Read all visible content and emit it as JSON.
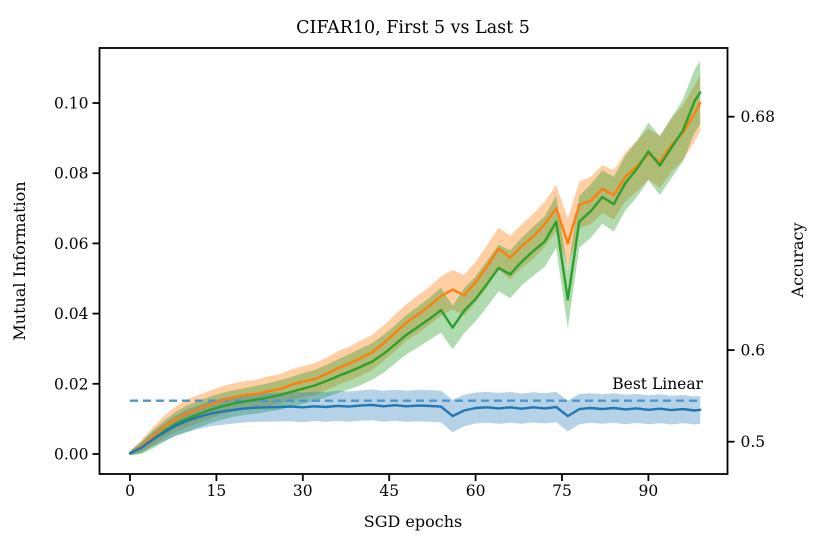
{
  "figure": {
    "background": "#ffffff",
    "text_color": "#000000"
  },
  "chart_data": {
    "type": "line",
    "title": "CIFAR10, First 5 vs Last 5",
    "xlabel": "SGD epochs",
    "ylabel_left": "Mutual Information",
    "ylabel_right": "Accuracy",
    "grid": false,
    "legend": "none",
    "x_axis": {
      "tick_values": [
        0,
        15,
        30,
        45,
        60,
        75,
        90
      ],
      "tick_labels": [
        "0",
        "15",
        "30",
        "45",
        "60",
        "75",
        "90"
      ],
      "range": [
        -5.3,
        103.7
      ]
    },
    "y_axis_left": {
      "tick_values": [
        0.0,
        0.02,
        0.04,
        0.06,
        0.08,
        0.1
      ],
      "tick_labels": [
        "0.00",
        "0.02",
        "0.04",
        "0.06",
        "0.08",
        "0.10"
      ],
      "range": [
        -0.0057,
        0.1157
      ]
    },
    "y_axis_right": {
      "note": "nonlinear accuracy axis; ticks located at equivalent Mutual Information values",
      "ticks": [
        {
          "label": "0.68",
          "mi": 0.0961
        },
        {
          "label": "0.6",
          "mi": 0.0296
        },
        {
          "label": "0.5",
          "mi": 0.0035
        }
      ]
    },
    "baseline": {
      "label": "Best Linear",
      "value": 0.0152,
      "x_start": 0,
      "x_end": 98.5,
      "color": "#4f94cc",
      "style": "dashed"
    },
    "x": [
      0,
      2,
      4,
      6,
      8,
      10,
      12,
      14,
      16,
      18,
      20,
      22,
      24,
      26,
      28,
      30,
      32,
      34,
      36,
      38,
      40,
      42,
      44,
      46,
      48,
      50,
      52,
      54,
      56,
      58,
      60,
      62,
      64,
      66,
      68,
      70,
      72,
      74,
      76,
      78,
      80,
      82,
      84,
      86,
      88,
      90,
      92,
      94,
      96,
      98,
      99
    ],
    "series": [
      {
        "name": "orange",
        "color": "#ff7f0e",
        "band_alpha": 0.38,
        "values": [
          0.0002,
          0.0022,
          0.005,
          0.0078,
          0.01,
          0.0116,
          0.0129,
          0.0141,
          0.0153,
          0.0161,
          0.0168,
          0.0171,
          0.0179,
          0.0185,
          0.0197,
          0.0206,
          0.0213,
          0.0227,
          0.0244,
          0.0257,
          0.0273,
          0.0289,
          0.0315,
          0.0345,
          0.0375,
          0.0398,
          0.0422,
          0.045,
          0.0468,
          0.0452,
          0.049,
          0.0535,
          0.0585,
          0.056,
          0.0592,
          0.062,
          0.0655,
          0.07,
          0.06,
          0.071,
          0.0722,
          0.0755,
          0.0738,
          0.079,
          0.082,
          0.0855,
          0.0832,
          0.088,
          0.0915,
          0.097,
          0.1
        ],
        "band_halfwidth": [
          0.0006,
          0.0018,
          0.0026,
          0.0032,
          0.0036,
          0.004,
          0.004,
          0.004,
          0.004,
          0.004,
          0.004,
          0.004,
          0.0042,
          0.0042,
          0.0044,
          0.0044,
          0.0046,
          0.0046,
          0.0048,
          0.0048,
          0.005,
          0.005,
          0.005,
          0.0052,
          0.0052,
          0.0054,
          0.0054,
          0.0056,
          0.0056,
          0.0058,
          0.0058,
          0.006,
          0.006,
          0.0062,
          0.0062,
          0.0064,
          0.0064,
          0.0066,
          0.007,
          0.0066,
          0.0068,
          0.0068,
          0.007,
          0.007,
          0.0072,
          0.0072,
          0.0074,
          0.0076,
          0.0078,
          0.008,
          0.008
        ]
      },
      {
        "name": "green",
        "color": "#2ca02c",
        "band_alpha": 0.38,
        "values": [
          0.0002,
          0.0018,
          0.0042,
          0.0066,
          0.0087,
          0.0101,
          0.0114,
          0.0126,
          0.0136,
          0.0144,
          0.015,
          0.0155,
          0.0161,
          0.0168,
          0.0177,
          0.0186,
          0.0195,
          0.0207,
          0.0221,
          0.0234,
          0.0248,
          0.0263,
          0.0285,
          0.0312,
          0.034,
          0.0362,
          0.0385,
          0.041,
          0.036,
          0.0408,
          0.0442,
          0.0485,
          0.053,
          0.0512,
          0.0548,
          0.0578,
          0.0605,
          0.0662,
          0.044,
          0.0662,
          0.0692,
          0.0732,
          0.0712,
          0.0772,
          0.0812,
          0.0862,
          0.0822,
          0.0872,
          0.0922,
          0.1005,
          0.103
        ],
        "band_halfwidth": [
          0.0006,
          0.0018,
          0.0026,
          0.003,
          0.0034,
          0.0038,
          0.0038,
          0.0038,
          0.0038,
          0.0038,
          0.0038,
          0.004,
          0.004,
          0.0042,
          0.0042,
          0.0044,
          0.0044,
          0.0046,
          0.0048,
          0.005,
          0.0052,
          0.0052,
          0.0054,
          0.0054,
          0.0056,
          0.0058,
          0.006,
          0.0064,
          0.0062,
          0.0064,
          0.0064,
          0.0066,
          0.0066,
          0.0068,
          0.0068,
          0.007,
          0.0072,
          0.0074,
          0.0082,
          0.0074,
          0.0076,
          0.0076,
          0.0078,
          0.0078,
          0.008,
          0.0082,
          0.0084,
          0.0086,
          0.0088,
          0.009,
          0.009
        ]
      },
      {
        "name": "blue",
        "color": "#1f77b4",
        "band_alpha": 0.33,
        "values": [
          0.0002,
          0.0018,
          0.0042,
          0.0062,
          0.0081,
          0.0095,
          0.0106,
          0.0115,
          0.0121,
          0.0126,
          0.013,
          0.0132,
          0.0133,
          0.0134,
          0.0135,
          0.0133,
          0.0136,
          0.0134,
          0.0137,
          0.0135,
          0.0138,
          0.014,
          0.0136,
          0.0139,
          0.0136,
          0.0138,
          0.0137,
          0.0135,
          0.0108,
          0.0124,
          0.0131,
          0.0133,
          0.013,
          0.0133,
          0.0129,
          0.0133,
          0.013,
          0.0134,
          0.0108,
          0.0128,
          0.0131,
          0.0128,
          0.0131,
          0.0127,
          0.013,
          0.0126,
          0.0129,
          0.0125,
          0.0128,
          0.0124,
          0.0126
        ],
        "band_halfwidth": [
          0.0005,
          0.0014,
          0.002,
          0.0025,
          0.0029,
          0.0032,
          0.0034,
          0.0036,
          0.0038,
          0.0039,
          0.004,
          0.004,
          0.0041,
          0.0041,
          0.0042,
          0.0042,
          0.0042,
          0.0042,
          0.0043,
          0.0043,
          0.0043,
          0.0044,
          0.0044,
          0.0044,
          0.0044,
          0.0045,
          0.0045,
          0.0045,
          0.0046,
          0.0045,
          0.0044,
          0.0044,
          0.0044,
          0.0044,
          0.0043,
          0.0043,
          0.0043,
          0.0043,
          0.0044,
          0.0043,
          0.0042,
          0.0042,
          0.0042,
          0.0042,
          0.0041,
          0.0041,
          0.0041,
          0.0041,
          0.004,
          0.004,
          0.004
        ]
      }
    ]
  }
}
